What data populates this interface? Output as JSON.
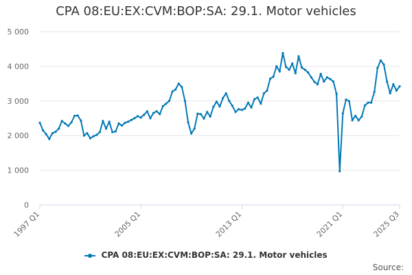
{
  "title": "CPA 08:EU:EX:CVM:BOP:SA: 29.1. Motor vehicles",
  "legend": {
    "label": "CPA 08:EU:EX:CVM:BOP:SA: 29.1. Motor vehicles"
  },
  "source_label": "Source:",
  "colors": {
    "series": "#0077b6",
    "grid": "#e6e6e6",
    "axis": "#ccd6eb"
  },
  "chart_data": {
    "type": "line",
    "title": "CPA 08:EU:EX:CVM:BOP:SA: 29.1. Motor vehicles",
    "xlabel": "",
    "ylabel": "",
    "ylim": [
      0,
      5000
    ],
    "grid": true,
    "legend_placement": "bottom",
    "y_ticks": [
      {
        "value": 0,
        "label": "0"
      },
      {
        "value": 1000,
        "label": "1 000"
      },
      {
        "value": 2000,
        "label": "2 000"
      },
      {
        "value": 3000,
        "label": "3 000"
      },
      {
        "value": 4000,
        "label": "4 000"
      },
      {
        "value": 5000,
        "label": "5 000"
      }
    ],
    "x_ticks": [
      {
        "index": 0,
        "label": "1997 Q1"
      },
      {
        "index": 32,
        "label": "2005 Q1"
      },
      {
        "index": 64,
        "label": "2013 Q1"
      },
      {
        "index": 96,
        "label": "2021 Q1"
      },
      {
        "index": 114,
        "label": "2025 Q3"
      }
    ],
    "x": [
      "1997 Q1",
      "1997 Q2",
      "1997 Q3",
      "1997 Q4",
      "1998 Q1",
      "1998 Q2",
      "1998 Q3",
      "1998 Q4",
      "1999 Q1",
      "1999 Q2",
      "1999 Q3",
      "1999 Q4",
      "2000 Q1",
      "2000 Q2",
      "2000 Q3",
      "2000 Q4",
      "2001 Q1",
      "2001 Q2",
      "2001 Q3",
      "2001 Q4",
      "2002 Q1",
      "2002 Q2",
      "2002 Q3",
      "2002 Q4",
      "2003 Q1",
      "2003 Q2",
      "2003 Q3",
      "2003 Q4",
      "2004 Q1",
      "2004 Q2",
      "2004 Q3",
      "2004 Q4",
      "2005 Q1",
      "2005 Q2",
      "2005 Q3",
      "2005 Q4",
      "2006 Q1",
      "2006 Q2",
      "2006 Q3",
      "2006 Q4",
      "2007 Q1",
      "2007 Q2",
      "2007 Q3",
      "2007 Q4",
      "2008 Q1",
      "2008 Q2",
      "2008 Q3",
      "2008 Q4",
      "2009 Q1",
      "2009 Q2",
      "2009 Q3",
      "2009 Q4",
      "2010 Q1",
      "2010 Q2",
      "2010 Q3",
      "2010 Q4",
      "2011 Q1",
      "2011 Q2",
      "2011 Q3",
      "2011 Q4",
      "2012 Q1",
      "2012 Q2",
      "2012 Q3",
      "2012 Q4",
      "2013 Q1",
      "2013 Q2",
      "2013 Q3",
      "2013 Q4",
      "2014 Q1",
      "2014 Q2",
      "2014 Q3",
      "2014 Q4",
      "2015 Q1",
      "2015 Q2",
      "2015 Q3",
      "2015 Q4",
      "2016 Q1",
      "2016 Q2",
      "2016 Q3",
      "2016 Q4",
      "2017 Q1",
      "2017 Q2",
      "2017 Q3",
      "2017 Q4",
      "2018 Q1",
      "2018 Q2",
      "2018 Q3",
      "2018 Q4",
      "2019 Q1",
      "2019 Q2",
      "2019 Q3",
      "2019 Q4",
      "2020 Q1",
      "2020 Q2",
      "2020 Q3",
      "2020 Q4",
      "2021 Q1",
      "2021 Q2",
      "2021 Q3",
      "2021 Q4",
      "2022 Q1",
      "2022 Q2",
      "2022 Q3",
      "2022 Q4",
      "2023 Q1",
      "2023 Q2",
      "2023 Q3",
      "2023 Q4",
      "2024 Q1",
      "2024 Q2",
      "2024 Q3",
      "2024 Q4",
      "2025 Q1",
      "2025 Q2",
      "2025 Q3"
    ],
    "series": [
      {
        "name": "CPA 08:EU:EX:CVM:BOP:SA: 29.1. Motor vehicles",
        "values": [
          2370,
          2150,
          2040,
          1900,
          2070,
          2110,
          2200,
          2420,
          2350,
          2280,
          2380,
          2570,
          2580,
          2430,
          2000,
          2070,
          1920,
          1980,
          2020,
          2100,
          2420,
          2200,
          2400,
          2100,
          2120,
          2350,
          2290,
          2370,
          2400,
          2450,
          2500,
          2560,
          2520,
          2600,
          2700,
          2500,
          2650,
          2700,
          2620,
          2850,
          2920,
          3000,
          3270,
          3330,
          3500,
          3400,
          3000,
          2380,
          2060,
          2200,
          2630,
          2620,
          2490,
          2680,
          2550,
          2830,
          2980,
          2840,
          3080,
          3220,
          3000,
          2860,
          2680,
          2760,
          2740,
          2780,
          2950,
          2810,
          3050,
          3100,
          2920,
          3220,
          3300,
          3640,
          3700,
          4000,
          3850,
          4380,
          3980,
          3900,
          4080,
          3800,
          4290,
          3960,
          3900,
          3820,
          3680,
          3550,
          3480,
          3780,
          3560,
          3680,
          3630,
          3560,
          3200,
          970,
          2640,
          3040,
          2990,
          2440,
          2570,
          2440,
          2550,
          2870,
          2950,
          2950,
          3260,
          3950,
          4170,
          4050,
          3560,
          3220,
          3480,
          3300,
          3420
        ]
      }
    ]
  }
}
